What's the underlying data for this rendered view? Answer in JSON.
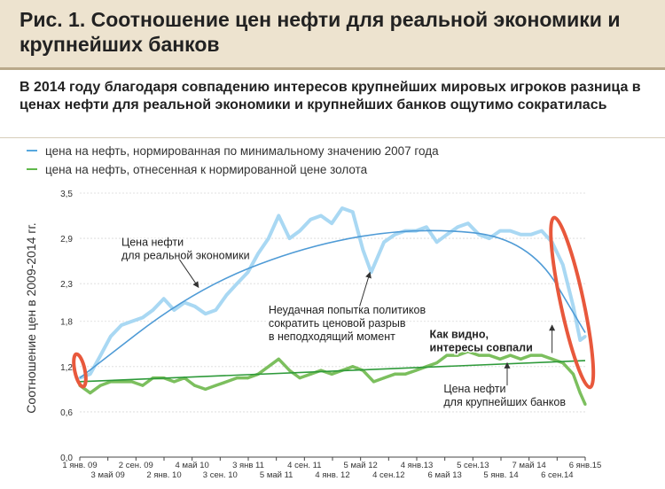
{
  "header": {
    "title": "Рис. 1. Соотношение цен нефти для реальной экономики и крупнейших банков",
    "subtitle": "В 2014 году благодаря совпадению интересов крупнейших мировых игроков разница в ценах нефти для реальной экономики и крупнейших банков ощутимо сократилась"
  },
  "legend": [
    {
      "label": "цена на нефть, нормированная по минимальному значению 2007 года",
      "color": "#57a8de"
    },
    {
      "label": "цена на нефть, отнесенная к нормированной цене золота",
      "color": "#5fb84a"
    }
  ],
  "colors": {
    "blue_line": "#a9d8f3",
    "blue_trend": "#4f9bd6",
    "green_line": "#7cbf5e",
    "green_trend": "#2e9a3a",
    "highlight": "#e8583c",
    "annotation": "#333333"
  },
  "chart_data": {
    "type": "line",
    "ylabel": "Соотношение цен в 2009-2014 гг.",
    "ylim": [
      0.0,
      3.5
    ],
    "y_ticks": [
      "0,0",
      "0,6",
      "1,2",
      "1,8",
      "2,3",
      "2,9",
      "3,5"
    ],
    "y_tick_values": [
      0.0,
      0.6,
      1.2,
      1.8,
      2.3,
      2.9,
      3.5
    ],
    "x_ticks": [
      {
        "label": "1 янв. 09",
        "x": "2009-01-01",
        "row": "top"
      },
      {
        "label": "3 май 09",
        "x": "2009-05-03",
        "row": "bottom"
      },
      {
        "label": "2 сен. 09",
        "x": "2009-09-02",
        "row": "top"
      },
      {
        "label": "2 янв. 10",
        "x": "2010-01-02",
        "row": "bottom"
      },
      {
        "label": "4 май 10",
        "x": "2010-05-04",
        "row": "top"
      },
      {
        "label": "3 сен. 10",
        "x": "2010-09-03",
        "row": "bottom"
      },
      {
        "label": "3 янв 11",
        "x": "2011-01-03",
        "row": "top"
      },
      {
        "label": "5 май 11",
        "x": "2011-05-05",
        "row": "bottom"
      },
      {
        "label": "4 сен. 11",
        "x": "2011-09-04",
        "row": "top"
      },
      {
        "label": "4 янв. 12",
        "x": "2012-01-04",
        "row": "bottom"
      },
      {
        "label": "5 май 12",
        "x": "2012-05-05",
        "row": "top"
      },
      {
        "label": "4 сен.12",
        "x": "2012-09-04",
        "row": "bottom"
      },
      {
        "label": "4 янв.13",
        "x": "2013-01-04",
        "row": "top"
      },
      {
        "label": "6 май 13",
        "x": "2013-05-06",
        "row": "bottom"
      },
      {
        "label": "5 сен.13",
        "x": "2013-09-05",
        "row": "top"
      },
      {
        "label": "5 янв. 14",
        "x": "2014-01-05",
        "row": "bottom"
      },
      {
        "label": "7 май 14",
        "x": "2014-05-07",
        "row": "top"
      },
      {
        "label": "6 сен.14",
        "x": "2014-09-06",
        "row": "bottom"
      },
      {
        "label": "6 янв.15",
        "x": "2015-01-06",
        "row": "top"
      }
    ],
    "series": [
      {
        "key": "real",
        "points": [
          [
            "2009-01-01",
            1.05
          ],
          [
            "2009-02-15",
            1.1
          ],
          [
            "2009-04-01",
            1.35
          ],
          [
            "2009-05-15",
            1.6
          ],
          [
            "2009-07-01",
            1.75
          ],
          [
            "2009-08-15",
            1.8
          ],
          [
            "2009-10-01",
            1.85
          ],
          [
            "2009-11-15",
            1.95
          ],
          [
            "2010-01-01",
            2.1
          ],
          [
            "2010-02-15",
            1.95
          ],
          [
            "2010-04-01",
            2.05
          ],
          [
            "2010-05-15",
            2.0
          ],
          [
            "2010-07-01",
            1.9
          ],
          [
            "2010-08-15",
            1.95
          ],
          [
            "2010-10-01",
            2.15
          ],
          [
            "2010-11-15",
            2.3
          ],
          [
            "2011-01-01",
            2.45
          ],
          [
            "2011-02-15",
            2.7
          ],
          [
            "2011-04-01",
            2.9
          ],
          [
            "2011-05-15",
            3.2
          ],
          [
            "2011-07-01",
            2.9
          ],
          [
            "2011-08-15",
            3.0
          ],
          [
            "2011-10-01",
            3.15
          ],
          [
            "2011-11-15",
            3.2
          ],
          [
            "2012-01-01",
            3.1
          ],
          [
            "2012-02-15",
            3.3
          ],
          [
            "2012-04-01",
            3.25
          ],
          [
            "2012-05-15",
            2.75
          ],
          [
            "2012-06-20",
            2.45
          ],
          [
            "2012-08-15",
            2.85
          ],
          [
            "2012-10-01",
            2.95
          ],
          [
            "2012-11-15",
            3.0
          ],
          [
            "2013-01-01",
            3.0
          ],
          [
            "2013-02-15",
            3.05
          ],
          [
            "2013-04-01",
            2.85
          ],
          [
            "2013-05-15",
            2.95
          ],
          [
            "2013-07-01",
            3.05
          ],
          [
            "2013-08-15",
            3.1
          ],
          [
            "2013-10-01",
            2.95
          ],
          [
            "2013-11-15",
            2.9
          ],
          [
            "2014-01-01",
            3.0
          ],
          [
            "2014-02-15",
            3.0
          ],
          [
            "2014-04-01",
            2.95
          ],
          [
            "2014-05-15",
            2.95
          ],
          [
            "2014-07-01",
            3.0
          ],
          [
            "2014-08-15",
            2.85
          ],
          [
            "2014-10-01",
            2.55
          ],
          [
            "2014-11-15",
            2.0
          ],
          [
            "2014-12-15",
            1.55
          ],
          [
            "2015-01-06",
            1.6
          ]
        ]
      },
      {
        "key": "banks",
        "points": [
          [
            "2009-01-01",
            0.95
          ],
          [
            "2009-02-15",
            0.85
          ],
          [
            "2009-04-01",
            0.95
          ],
          [
            "2009-05-15",
            1.0
          ],
          [
            "2009-07-01",
            1.0
          ],
          [
            "2009-08-15",
            1.0
          ],
          [
            "2009-10-01",
            0.95
          ],
          [
            "2009-11-15",
            1.05
          ],
          [
            "2010-01-01",
            1.05
          ],
          [
            "2010-02-15",
            1.0
          ],
          [
            "2010-04-01",
            1.05
          ],
          [
            "2010-05-15",
            0.95
          ],
          [
            "2010-07-01",
            0.9
          ],
          [
            "2010-08-15",
            0.95
          ],
          [
            "2010-10-01",
            1.0
          ],
          [
            "2010-11-15",
            1.05
          ],
          [
            "2011-01-01",
            1.05
          ],
          [
            "2011-02-15",
            1.1
          ],
          [
            "2011-04-01",
            1.2
          ],
          [
            "2011-05-15",
            1.3
          ],
          [
            "2011-07-01",
            1.15
          ],
          [
            "2011-08-15",
            1.05
          ],
          [
            "2011-10-01",
            1.1
          ],
          [
            "2011-11-15",
            1.15
          ],
          [
            "2012-01-01",
            1.1
          ],
          [
            "2012-02-15",
            1.15
          ],
          [
            "2012-04-01",
            1.2
          ],
          [
            "2012-05-15",
            1.15
          ],
          [
            "2012-07-01",
            1.0
          ],
          [
            "2012-08-15",
            1.05
          ],
          [
            "2012-10-01",
            1.1
          ],
          [
            "2012-11-15",
            1.1
          ],
          [
            "2013-01-01",
            1.15
          ],
          [
            "2013-02-15",
            1.2
          ],
          [
            "2013-04-01",
            1.25
          ],
          [
            "2013-05-15",
            1.35
          ],
          [
            "2013-07-01",
            1.35
          ],
          [
            "2013-08-15",
            1.4
          ],
          [
            "2013-10-01",
            1.35
          ],
          [
            "2013-11-15",
            1.35
          ],
          [
            "2014-01-01",
            1.3
          ],
          [
            "2014-02-15",
            1.35
          ],
          [
            "2014-04-01",
            1.3
          ],
          [
            "2014-05-15",
            1.35
          ],
          [
            "2014-07-01",
            1.35
          ],
          [
            "2014-08-15",
            1.3
          ],
          [
            "2014-10-01",
            1.25
          ],
          [
            "2014-11-15",
            1.1
          ],
          [
            "2014-12-15",
            0.85
          ],
          [
            "2015-01-06",
            0.7
          ]
        ]
      }
    ],
    "trends": {
      "real": [
        [
          "2009-01-01",
          1.05
        ],
        [
          "2010-05-04",
          2.2
        ],
        [
          "2011-09-04",
          2.8
        ],
        [
          "2013-01-04",
          3.05
        ],
        [
          "2014-05-07",
          2.9
        ],
        [
          "2015-01-06",
          1.65
        ]
      ],
      "banks": [
        [
          "2009-01-01",
          1.0
        ],
        [
          "2015-01-06",
          1.28
        ]
      ]
    },
    "annotations": [
      {
        "text": [
          "Цена нефти",
          "для реальной экономики"
        ],
        "bold": false,
        "anchor": [
          "2009-07-01",
          2.8
        ],
        "arrow_to": [
          "2010-06-01",
          2.25
        ],
        "arrow_from": [
          "2010-03-10",
          2.62
        ]
      },
      {
        "text": [
          "Неудачная попытка политиков",
          "сократить ценовой разрыв",
          "в неподходящий момент"
        ],
        "bold": false,
        "anchor": [
          "2011-04-01",
          1.9
        ],
        "arrow_to": [
          "2012-06-15",
          2.45
        ],
        "arrow_from": [
          "2012-05-01",
          2.0
        ]
      },
      {
        "text": [
          "Как видно,",
          "интересы совпали"
        ],
        "bold": true,
        "anchor": [
          "2013-03-01",
          1.58
        ],
        "arrow_to": [
          "2014-08-15",
          1.75
        ],
        "arrow_from": [
          "2014-08-15",
          1.38
        ]
      },
      {
        "text": [
          "Цена нефти",
          "для крупнейших банков"
        ],
        "bold": false,
        "anchor": [
          "2013-05-01",
          0.86
        ],
        "arrow_to": [
          "2014-02-01",
          1.25
        ],
        "arrow_from": [
          "2014-02-01",
          0.95
        ]
      }
    ],
    "highlights": [
      {
        "center": [
          "2009-01-01",
          1.15
        ],
        "rx_days": 22,
        "ry": 0.22
      },
      {
        "center": [
          "2014-11-10",
          2.05
        ],
        "rx_days": 50,
        "ry": 1.15
      }
    ],
    "grid": "horizontal"
  }
}
